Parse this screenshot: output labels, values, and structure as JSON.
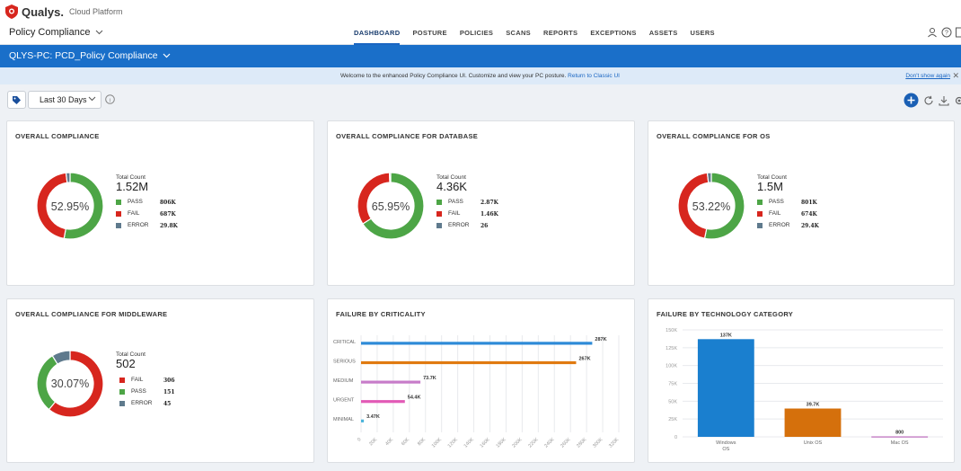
{
  "brand": {
    "name": "Qualys.",
    "sub": "Cloud Platform"
  },
  "module": {
    "label": "Policy Compliance"
  },
  "nav": {
    "tabs": [
      {
        "label": "DASHBOARD",
        "active": true
      },
      {
        "label": "POSTURE"
      },
      {
        "label": "POLICIES"
      },
      {
        "label": "SCANS"
      },
      {
        "label": "REPORTS"
      },
      {
        "label": "EXCEPTIONS"
      },
      {
        "label": "ASSETS"
      },
      {
        "label": "USERS"
      }
    ],
    "icons": [
      "user-icon",
      "help-icon",
      "docs-icon"
    ]
  },
  "scope": {
    "label": "QLYS-PC: PCD_Policy Compliance"
  },
  "banner": {
    "message": "Welcome to the enhanced Policy Compliance UI. Customize and view your PC posture.",
    "link": "Return to Classic UI",
    "dismiss": "Don't show again"
  },
  "filter": {
    "range": "Last 30 Days"
  },
  "colors": {
    "pass": "#4da546",
    "fail": "#d7261e",
    "error": "#5f7a8d",
    "accent": "#1a6fc9"
  },
  "widgets": {
    "overall": {
      "title": "OVERALL COMPLIANCE",
      "center": "52.95%",
      "total_label": "Total Count",
      "total": "1.52M",
      "legend": [
        {
          "label": "PASS",
          "value": "806K"
        },
        {
          "label": "FAIL",
          "value": "687K"
        },
        {
          "label": "ERROR",
          "value": "29.8K"
        }
      ]
    },
    "database": {
      "title": "OVERALL COMPLIANCE FOR DATABASE",
      "center": "65.95%",
      "total_label": "Total Count",
      "total": "4.36K",
      "legend": [
        {
          "label": "PASS",
          "value": "2.87K"
        },
        {
          "label": "FAIL",
          "value": "1.46K"
        },
        {
          "label": "ERROR",
          "value": "26"
        }
      ]
    },
    "os": {
      "title": "OVERALL COMPLIANCE FOR OS",
      "center": "53.22%",
      "total_label": "Total Count",
      "total": "1.5M",
      "legend": [
        {
          "label": "PASS",
          "value": "801K"
        },
        {
          "label": "FAIL",
          "value": "674K"
        },
        {
          "label": "ERROR",
          "value": "29.4K"
        }
      ]
    },
    "middleware": {
      "title": "OVERALL COMPLIANCE FOR MIDDLEWARE",
      "center": "30.07%",
      "total_label": "Total Count",
      "total": "502",
      "legend": [
        {
          "label": "FAIL",
          "value": "306"
        },
        {
          "label": "PASS",
          "value": "151"
        },
        {
          "label": "ERROR",
          "value": "45"
        }
      ]
    },
    "criticality": {
      "title": "FAILURE BY CRITICALITY"
    },
    "technology": {
      "title": "FAILURE BY TECHNOLOGY CATEGORY"
    }
  },
  "chart_data": [
    {
      "type": "pie",
      "categories": [
        "PASS",
        "FAIL",
        "ERROR"
      ],
      "values": [
        806000,
        687000,
        29800
      ],
      "colors": [
        "#4da546",
        "#d7261e",
        "#5f7a8d"
      ]
    },
    {
      "type": "pie",
      "categories": [
        "PASS",
        "FAIL",
        "ERROR"
      ],
      "values": [
        2870,
        1460,
        26
      ],
      "colors": [
        "#4da546",
        "#d7261e",
        "#5f7a8d"
      ]
    },
    {
      "type": "pie",
      "categories": [
        "PASS",
        "FAIL",
        "ERROR"
      ],
      "values": [
        801000,
        674000,
        29400
      ],
      "colors": [
        "#4da546",
        "#d7261e",
        "#5f7a8d"
      ]
    },
    {
      "type": "pie",
      "categories": [
        "FAIL",
        "PASS",
        "ERROR"
      ],
      "values": [
        306,
        151,
        45
      ],
      "colors": [
        "#d7261e",
        "#4da546",
        "#5f7a8d"
      ]
    },
    {
      "type": "bar",
      "orientation": "horizontal",
      "categories": [
        "CRITICAL",
        "SERIOUS",
        "MEDIUM",
        "URGENT",
        "MINIMAL"
      ],
      "values": [
        287000,
        267000,
        73700,
        54400,
        3470
      ],
      "labels": [
        "287K",
        "267K",
        "73.7K",
        "54.4K",
        "3.47K"
      ],
      "colors": [
        "#2d8ad7",
        "#e07a10",
        "#c77cc9",
        "#e25ab6",
        "#49b3da"
      ],
      "xlim": [
        0,
        320000
      ],
      "xticks": [
        "0",
        "20K",
        "40K",
        "60K",
        "80K",
        "100K",
        "120K",
        "140K",
        "160K",
        "180K",
        "200K",
        "220K",
        "240K",
        "260K",
        "280K",
        "300K",
        "320K"
      ],
      "grid": true
    },
    {
      "type": "bar",
      "categories": [
        "Windows OS",
        "Unix OS",
        "Mac OS"
      ],
      "values": [
        137000,
        39700,
        800
      ],
      "labels": [
        "137K",
        "39.7K",
        "800"
      ],
      "colors": [
        "#1a7fcf",
        "#d5700c",
        "#c785c8"
      ],
      "ylim": [
        0,
        150000
      ],
      "yticks": [
        "0",
        "25K",
        "50K",
        "75K",
        "100K",
        "125K",
        "150K"
      ],
      "grid": true
    }
  ]
}
